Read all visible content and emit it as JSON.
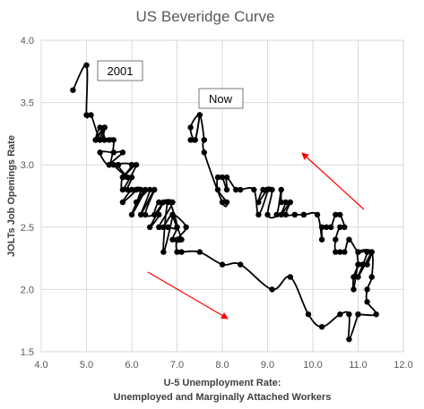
{
  "chart_data": {
    "type": "line",
    "title": "US Beveridge Curve",
    "xlabel_line1": "U-5 Unemployment Rate:",
    "xlabel_line2": "Unemployed and Marginally Attached Workers",
    "ylabel": "JOLTs Job Openings Rate",
    "xlim": [
      4.0,
      12.0
    ],
    "ylim": [
      1.5,
      4.0
    ],
    "xticks": [
      "4.0",
      "5.0",
      "6.0",
      "7.0",
      "8.0",
      "9.0",
      "10.0",
      "11.0",
      "12.0"
    ],
    "yticks": [
      "1.5",
      "2.0",
      "2.5",
      "3.0",
      "3.5",
      "4.0"
    ],
    "grid": true,
    "series": [
      {
        "x": [
          4.7,
          5.0,
          5.0,
          5.1,
          5.3,
          5.4,
          5.2,
          5.3,
          5.4,
          5.2,
          5.4,
          5.3,
          5.5,
          5.4,
          5.6,
          5.5,
          5.3,
          5.6,
          5.8,
          5.5,
          5.7,
          5.6,
          5.9,
          5.7,
          6.0,
          5.8,
          6.1,
          5.8,
          5.8,
          6.0,
          5.9,
          6.1,
          5.8,
          6.0,
          6.2,
          6.0,
          6.3,
          6.1,
          6.4,
          6.2,
          6.5,
          6.3,
          6.6,
          6.4,
          6.7,
          6.5,
          6.6,
          6.9,
          6.6,
          6.8,
          7.0,
          6.8,
          6.7,
          6.9,
          6.7,
          6.9,
          7.0,
          6.9,
          7.1,
          6.9,
          7.2,
          7.0,
          7.0,
          7.1,
          7.5,
          8.0,
          8.4,
          9.1,
          9.5,
          9.9,
          10.2,
          10.6,
          10.8,
          10.8,
          11.0,
          11.0,
          11.4,
          11.2,
          11.2,
          11.3,
          11.3,
          11.0,
          11.0,
          10.9,
          10.9,
          11.0,
          11.1,
          11.2,
          11.3,
          11.0,
          11.2,
          11.0,
          10.8,
          10.7,
          10.6,
          10.5,
          10.5,
          10.6,
          10.7,
          10.6,
          10.5,
          10.4,
          10.3,
          10.2,
          10.2,
          10.1,
          9.8,
          9.6,
          9.8,
          9.6,
          9.4,
          9.5,
          9.3,
          9.4,
          9.3,
          9.3,
          9.2,
          9.0,
          9.1,
          8.9,
          8.8,
          9.0,
          8.8,
          8.7,
          8.4,
          8.3,
          8.1,
          8.1,
          8.0,
          7.9,
          7.9,
          8.1,
          8.0,
          7.6,
          7.6,
          7.6,
          7.5,
          7.3,
          7.4,
          7.5,
          7.4,
          7.3
        ],
        "y": [
          3.6,
          3.8,
          3.4,
          3.4,
          3.2,
          3.3,
          3.2,
          3.3,
          3.2,
          3.2,
          3.3,
          3.2,
          3.2,
          3.2,
          3.2,
          3.0,
          3.1,
          3.1,
          3.1,
          3.0,
          3.0,
          3.0,
          2.9,
          3.0,
          3.0,
          2.9,
          3.0,
          2.8,
          2.9,
          2.9,
          2.8,
          2.8,
          2.7,
          2.8,
          2.8,
          2.6,
          2.8,
          2.7,
          2.8,
          2.6,
          2.8,
          2.6,
          2.6,
          2.5,
          2.7,
          2.6,
          2.7,
          2.7,
          2.5,
          2.5,
          2.5,
          2.7,
          2.3,
          2.6,
          2.5,
          2.6,
          2.5,
          2.4,
          2.4,
          2.6,
          2.5,
          2.4,
          2.3,
          2.3,
          2.3,
          2.2,
          2.2,
          2.0,
          2.1,
          1.8,
          1.7,
          1.8,
          1.8,
          1.6,
          1.8,
          1.8,
          1.8,
          1.9,
          2.0,
          2.1,
          2.3,
          2.3,
          2.2,
          2.1,
          2.0,
          2.2,
          2.2,
          2.2,
          2.3,
          2.1,
          2.3,
          2.3,
          2.4,
          2.3,
          2.3,
          2.3,
          2.4,
          2.5,
          2.5,
          2.6,
          2.6,
          2.5,
          2.5,
          2.5,
          2.4,
          2.6,
          2.6,
          2.6,
          2.6,
          2.6,
          2.6,
          2.7,
          2.6,
          2.7,
          2.7,
          2.8,
          2.6,
          2.6,
          2.8,
          2.8,
          2.7,
          2.8,
          2.6,
          2.8,
          2.8,
          2.8,
          2.9,
          2.8,
          2.9,
          2.9,
          2.8,
          2.7,
          2.7,
          3.1,
          3.2,
          3.2,
          3.4,
          3.3,
          3.2,
          3.4,
          3.2,
          3.2
        ]
      }
    ],
    "annotations": [
      {
        "name": "annotation-2001",
        "text": "2001"
      },
      {
        "name": "annotation-now",
        "text": "Now"
      }
    ],
    "arrows": [
      "up-left",
      "down-right"
    ],
    "colors": {
      "line": "#000000",
      "grid": "#d9d9d9",
      "arrow": "#ff0000",
      "text": "#595959"
    }
  }
}
